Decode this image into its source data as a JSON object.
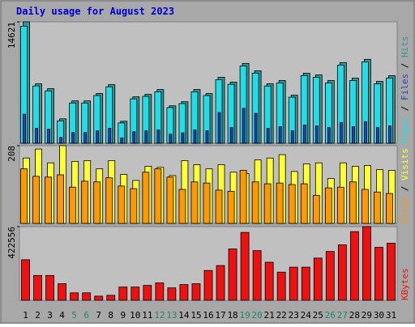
{
  "title": "Daily usage for August 2023",
  "chart_data": [
    {
      "type": "bar",
      "ylim": [
        0,
        14621
      ],
      "yticks": [
        14621
      ],
      "series": [
        {
          "name": "Pages",
          "color": "#22dde8",
          "values": [
            14100,
            6900,
            6300,
            2700,
            4850,
            4850,
            5750,
            6800,
            2450,
            5350,
            5650,
            6200,
            4300,
            4780,
            6200,
            5750,
            7650,
            7100,
            9300,
            8450,
            6900,
            7250,
            5550,
            8150,
            7950,
            7250,
            9400,
            7550,
            9800,
            7150,
            7850
          ]
        },
        {
          "name": "Files",
          "color": "#2a3cc8",
          "values": [
            3500,
            1800,
            1700,
            700,
            1300,
            1300,
            1500,
            1800,
            650,
            1400,
            1500,
            1600,
            1100,
            1250,
            1600,
            1500,
            3700,
            1900,
            4200,
            3600,
            1800,
            2000,
            1500,
            2200,
            2100,
            1900,
            2500,
            2000,
            2600,
            1900,
            2100
          ]
        },
        {
          "name": "Hits",
          "color": "#2e9a9a",
          "values": [
            14621,
            7163,
            6575,
            2944,
            5103,
            5103,
            5986,
            7065,
            2650,
            5593,
            5888,
            6477,
            4514,
            5005,
            6477,
            5986,
            7949,
            7360,
            9617,
            8734,
            7163,
            7556,
            5790,
            8439,
            8243,
            7556,
            9715,
            7850,
            10107,
            7458,
            8145
          ]
        }
      ]
    },
    {
      "type": "bar",
      "ylim": [
        0,
        208
      ],
      "yticks": [
        208
      ],
      "series": [
        {
          "name": "Sites",
          "color": "#ff9900",
          "values": [
            146,
            126,
            124,
            130,
            97,
            113,
            111,
            122,
            100,
            93,
            137,
            146,
            124,
            91,
            111,
            108,
            89,
            86,
            142,
            111,
            106,
            108,
            104,
            106,
            75,
            95,
            97,
            111,
            91,
            84,
            80
          ]
        },
        {
          "name": "Visits",
          "color": "#ffff33",
          "values": [
            175,
            199,
            162,
            208,
            166,
            168,
            146,
            168,
            131,
            115,
            153,
            150,
            128,
            168,
            157,
            146,
            157,
            137,
            133,
            170,
            175,
            184,
            139,
            159,
            162,
            120,
            162,
            153,
            155,
            144,
            142
          ]
        }
      ]
    },
    {
      "type": "bar",
      "ylim": [
        0,
        422556
      ],
      "yticks": [
        422556
      ],
      "categories": [
        "1",
        "2",
        "3",
        "4",
        "5",
        "6",
        "7",
        "8",
        "9",
        "10",
        "11",
        "12",
        "13",
        "14",
        "15",
        "16",
        "17",
        "18",
        "19",
        "20",
        "21",
        "22",
        "23",
        "24",
        "25",
        "26",
        "27",
        "28",
        "29",
        "30",
        "31"
      ],
      "category_colors": [
        "#000",
        "#000",
        "#000",
        "#000",
        "#1a8a6a",
        "#1a8a6a",
        "#000",
        "#000",
        "#000",
        "#000",
        "#000",
        "#1a8a6a",
        "#1a8a6a",
        "#000",
        "#000",
        "#000",
        "#000",
        "#000",
        "#1a8a6a",
        "#1a8a6a",
        "#000",
        "#000",
        "#000",
        "#000",
        "#000",
        "#1a8a6a",
        "#1a8a6a",
        "#000",
        "#000",
        "#000",
        "#000"
      ],
      "series": [
        {
          "name": "KBytes",
          "color": "#ee1111",
          "values": [
            232652,
            142440,
            142440,
            94960,
            42732,
            42732,
            23740,
            28488,
            75968,
            75968,
            85464,
            99708,
            71220,
            90212,
            94960,
            170928,
            199416,
            294376,
            389336,
            284880,
            218408,
            161432,
            189920,
            189920,
            242148,
            280132,
            318116,
            394084,
            422556,
            303872,
            327612
          ]
        }
      ]
    }
  ]
}
